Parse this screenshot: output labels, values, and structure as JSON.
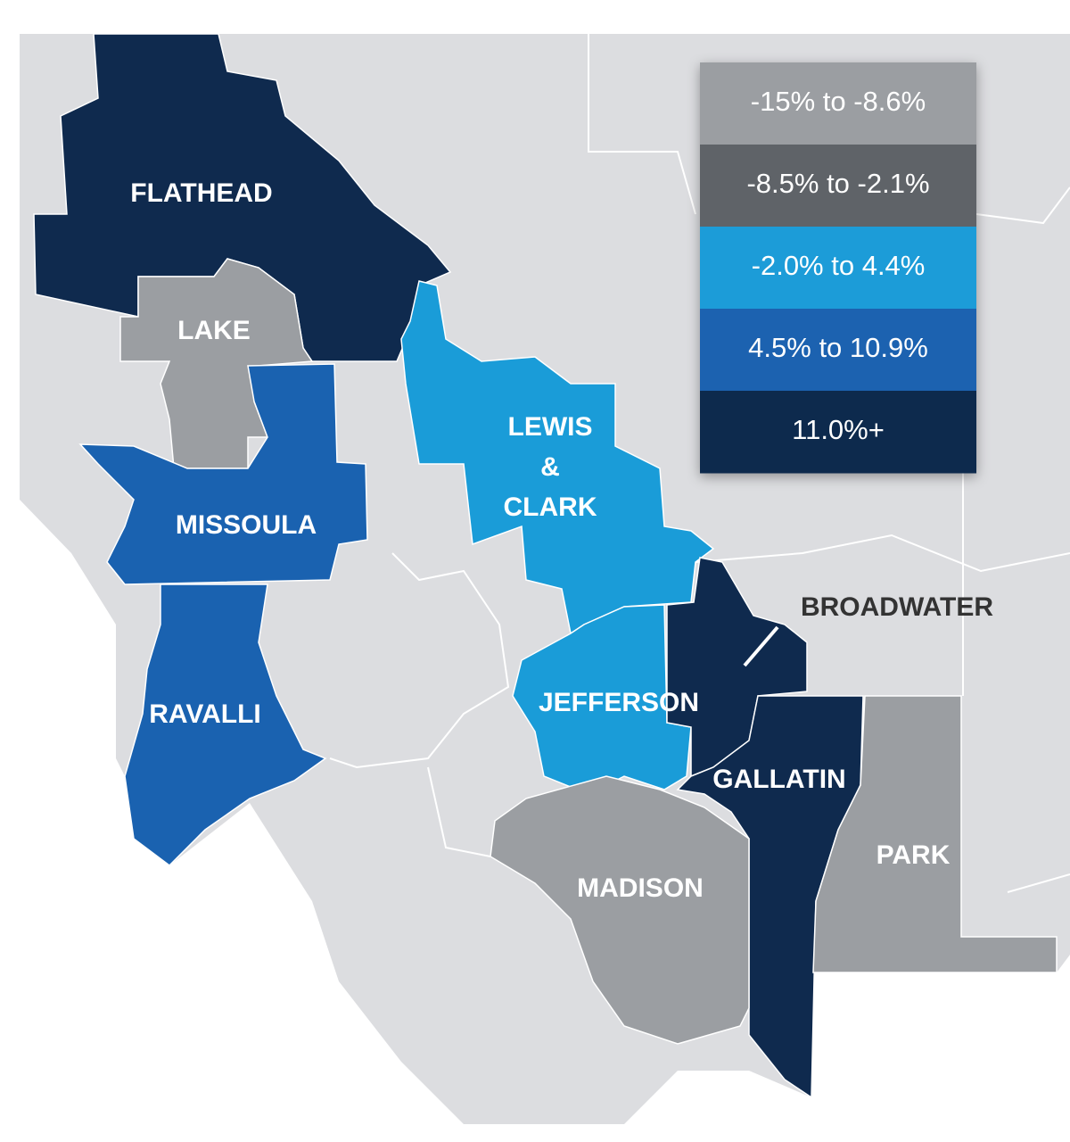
{
  "legend": [
    {
      "label": "-15% to -8.6%",
      "color": "#9b9ea2"
    },
    {
      "label": "-8.5% to -2.1%",
      "color": "#5f6368"
    },
    {
      "label": "-2.0% to 4.4%",
      "color": "#1a9cd8"
    },
    {
      "label": "4.5% to 10.9%",
      "color": "#1a62b0"
    },
    {
      "label": "11.0%+",
      "color": "#0f2a4e"
    }
  ],
  "counties": [
    {
      "name": "FLATHEAD",
      "class": 4
    },
    {
      "name": "LAKE",
      "class": 0
    },
    {
      "name": "MISSOULA",
      "class": 3
    },
    {
      "name": "RAVALLI",
      "class": 3
    },
    {
      "name": "LEWIS & CLARK",
      "class": 2
    },
    {
      "name": "JEFFERSON",
      "class": 2
    },
    {
      "name": "BROADWATER",
      "class": 4
    },
    {
      "name": "GALLATIN",
      "class": 4
    },
    {
      "name": "MADISON",
      "class": 0
    },
    {
      "name": "PARK",
      "class": 0
    }
  ]
}
